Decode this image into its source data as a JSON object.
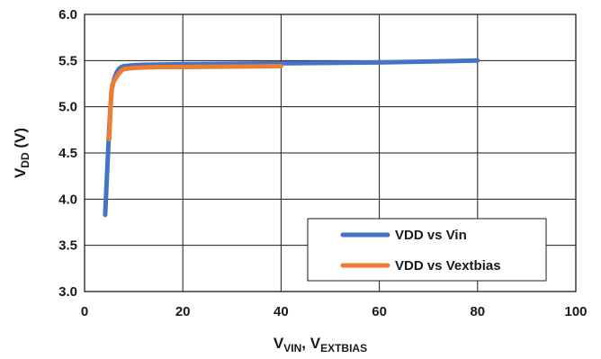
{
  "chart_data": {
    "type": "line",
    "xlabel": {
      "main": "V",
      "sub1": "VIN",
      "sep": ", V",
      "sub2": "EXTBIAS"
    },
    "ylabel": {
      "main": "V",
      "sub": "DD",
      "unit": " (V)"
    },
    "xlim": [
      0,
      100
    ],
    "ylim": [
      3.0,
      6.0
    ],
    "x_ticks": [
      0,
      20,
      40,
      60,
      80,
      100
    ],
    "y_ticks": [
      3.0,
      3.5,
      4.0,
      4.5,
      5.0,
      5.5,
      6.0
    ],
    "x_tick_labels": [
      "0",
      "20",
      "40",
      "60",
      "80",
      "100"
    ],
    "y_tick_labels": [
      "3.0",
      "3.5",
      "4.0",
      "4.5",
      "5.0",
      "5.5",
      "6.0"
    ],
    "grid": true,
    "legend_position": "bottom-right",
    "series": [
      {
        "name": "VDD vs Vin",
        "color": "#4472C4",
        "x": [
          4.2,
          4.6,
          5.0,
          5.5,
          6.0,
          6.5,
          7.0,
          7.5,
          8.0,
          9.0,
          10,
          12,
          15,
          20,
          30,
          40,
          50,
          60,
          70,
          80
        ],
        "y": [
          3.83,
          4.3,
          4.75,
          5.18,
          5.3,
          5.37,
          5.41,
          5.43,
          5.44,
          5.445,
          5.45,
          5.455,
          5.457,
          5.46,
          5.465,
          5.47,
          5.475,
          5.48,
          5.49,
          5.5
        ]
      },
      {
        "name": "VDD vs Vextbias",
        "color": "#ED7D31",
        "x": [
          5.0,
          5.3,
          5.6,
          6.0,
          6.5,
          7.0,
          7.5,
          8.0,
          9.0,
          10,
          12,
          15,
          20,
          30,
          40
        ],
        "y": [
          4.65,
          5.0,
          5.23,
          5.28,
          5.32,
          5.36,
          5.39,
          5.41,
          5.415,
          5.42,
          5.425,
          5.43,
          5.43,
          5.435,
          5.44
        ]
      }
    ]
  }
}
